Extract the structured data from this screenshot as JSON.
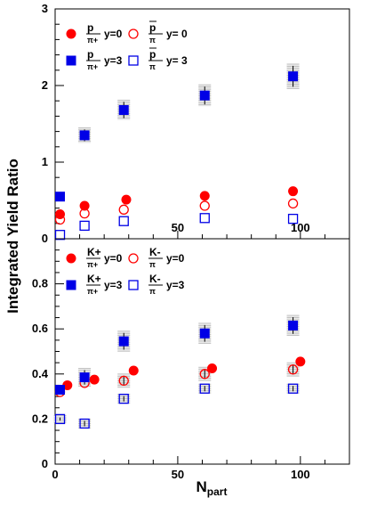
{
  "colors": {
    "red": "#ff0000",
    "blue": "#0000e6",
    "band": "#b8b8b8"
  },
  "ylabel": "Integrated Yield Ratio",
  "xlabel_main": "N",
  "xlabel_sub": "part",
  "chart_data": [
    {
      "panel": "top",
      "type": "scatter",
      "xlim": [
        0,
        120
      ],
      "ylim": [
        0,
        3
      ],
      "x_ticks": [
        "50",
        "100"
      ],
      "y_ticks": [
        "0",
        "1",
        "2",
        "3"
      ],
      "legend": [
        {
          "num": "p",
          "den": "π+",
          "cond": "y=0",
          "bar": false,
          "marker": "filled-circle",
          "color": "red"
        },
        {
          "num": "p",
          "den": "π",
          "cond": "y= 0",
          "bar": true,
          "marker": "open-circle",
          "color": "red"
        },
        {
          "num": "p",
          "den": "π+",
          "cond": "y=3",
          "bar": false,
          "marker": "filled-square",
          "color": "blue"
        },
        {
          "num": "p",
          "den": "π",
          "cond": "y= 3",
          "bar": true,
          "marker": "open-square",
          "color": "blue"
        }
      ],
      "series": [
        {
          "marker": "filled-circle",
          "color": "red",
          "points": [
            [
              2,
              0.32
            ],
            [
              12,
              0.43
            ],
            [
              29,
              0.51
            ],
            [
              61,
              0.56
            ],
            [
              97,
              0.62
            ]
          ]
        },
        {
          "marker": "open-circle",
          "color": "red",
          "points": [
            [
              2,
              0.25
            ],
            [
              12,
              0.33
            ],
            [
              28,
              0.38
            ],
            [
              61,
              0.43
            ],
            [
              97,
              0.46
            ]
          ]
        },
        {
          "marker": "filled-square",
          "color": "blue",
          "points": [
            [
              2,
              0.55
            ],
            [
              12,
              1.35
            ],
            [
              28,
              1.68
            ],
            [
              61,
              1.87
            ],
            [
              97,
              2.12
            ]
          ]
        },
        {
          "marker": "open-square",
          "color": "blue",
          "points": [
            [
              2,
              0.05
            ],
            [
              12,
              0.17
            ],
            [
              28,
              0.23
            ],
            [
              61,
              0.27
            ],
            [
              97,
              0.26
            ]
          ]
        }
      ],
      "bands": [
        {
          "x": 12,
          "y": 1.35,
          "err": 0.1
        },
        {
          "x": 28,
          "y": 1.68,
          "err": 0.13
        },
        {
          "x": 61,
          "y": 1.87,
          "err": 0.14
        },
        {
          "x": 97,
          "y": 2.12,
          "err": 0.16
        }
      ]
    },
    {
      "panel": "bottom",
      "type": "scatter",
      "xlim": [
        0,
        120
      ],
      "ylim": [
        0,
        1.0
      ],
      "x_ticks": [
        "0",
        "50",
        "100"
      ],
      "y_ticks": [
        "0",
        "0.2",
        "0.4",
        "0.6",
        "0.8"
      ],
      "legend": [
        {
          "num": "K+",
          "den": "π+",
          "cond": "y=0",
          "marker": "filled-circle",
          "color": "red"
        },
        {
          "num": "K-",
          "den": "π",
          "cond": "y=0",
          "marker": "open-circle",
          "color": "red"
        },
        {
          "num": "K+",
          "den": "π+",
          "cond": "y=3",
          "marker": "filled-square",
          "color": "blue"
        },
        {
          "num": "K-",
          "den": "π",
          "cond": "y=3",
          "marker": "open-square",
          "color": "blue"
        }
      ],
      "series": [
        {
          "marker": "filled-circle",
          "color": "red",
          "points": [
            [
              5,
              0.35
            ],
            [
              16,
              0.375
            ],
            [
              32,
              0.415
            ],
            [
              64,
              0.425
            ],
            [
              100,
              0.455
            ]
          ]
        },
        {
          "marker": "open-circle",
          "color": "red",
          "points": [
            [
              2,
              0.32
            ],
            [
              12,
              0.36
            ],
            [
              28,
              0.37
            ],
            [
              61,
              0.4
            ],
            [
              97,
              0.42
            ]
          ]
        },
        {
          "marker": "filled-square",
          "color": "blue",
          "points": [
            [
              2,
              0.33
            ],
            [
              12,
              0.385
            ],
            [
              28,
              0.545
            ],
            [
              61,
              0.58
            ],
            [
              97,
              0.615
            ]
          ]
        },
        {
          "marker": "open-square",
          "color": "blue",
          "points": [
            [
              2,
              0.2
            ],
            [
              12,
              0.18
            ],
            [
              28,
              0.29
            ],
            [
              61,
              0.335
            ],
            [
              97,
              0.335
            ]
          ]
        }
      ],
      "bands": [
        {
          "x": 12,
          "y": 0.385,
          "err": 0.04
        },
        {
          "x": 28,
          "y": 0.545,
          "err": 0.045
        },
        {
          "x": 61,
          "y": 0.58,
          "err": 0.045
        },
        {
          "x": 97,
          "y": 0.615,
          "err": 0.045
        },
        {
          "x": 28,
          "y": 0.37,
          "err": 0.03
        },
        {
          "x": 61,
          "y": 0.4,
          "err": 0.03
        },
        {
          "x": 97,
          "y": 0.42,
          "err": 0.03
        },
        {
          "x": 2,
          "y": 0.2,
          "err": 0.015
        },
        {
          "x": 12,
          "y": 0.18,
          "err": 0.02
        },
        {
          "x": 28,
          "y": 0.29,
          "err": 0.02
        },
        {
          "x": 61,
          "y": 0.335,
          "err": 0.02
        },
        {
          "x": 97,
          "y": 0.335,
          "err": 0.02
        }
      ]
    }
  ]
}
